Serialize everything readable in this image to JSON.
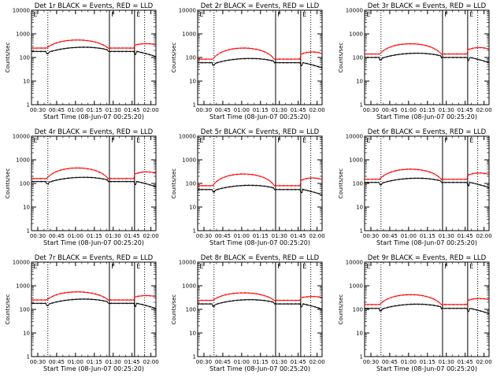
{
  "figure": {
    "xlabel": "Start Time (08-Jun-07 00:25:20)",
    "ylabel": "Counts/sec",
    "series_colors": {
      "Events": "#000000",
      "LLD": "#ff0000"
    }
  },
  "chart_data": [
    {
      "type": "line",
      "title": "Det 1r BLACK = Events, RED = LLD",
      "xlabel": "Start Time (08-Jun-07 00:25:20)",
      "ylabel": "Counts/sec",
      "y_scale": "log",
      "ylim": [
        1,
        10000
      ],
      "xlim": [
        "00:25",
        "02:04"
      ],
      "x_ticks": [
        "00:30",
        "00:45",
        "01:00",
        "01:15",
        "01:30",
        "01:45",
        "02:00"
      ],
      "y_ticks": [
        "1",
        "10",
        "100",
        "1000",
        "10000"
      ],
      "vlines_solid": [
        "01:27",
        "01:47"
      ],
      "vlines_dotted": [
        "00:38",
        "01:55"
      ],
      "flags": [
        "E",
        "F",
        "E"
      ],
      "events_level": 180,
      "lld_level": 250,
      "lld_peak": 550
    },
    {
      "type": "line",
      "title": "Det 2r BLACK = Events, RED = LLD",
      "xlabel": "Start Time (08-Jun-07 00:25:20)",
      "ylabel": "Counts/sec",
      "y_scale": "log",
      "ylim": [
        1,
        10000
      ],
      "xlim": [
        "00:25",
        "02:04"
      ],
      "x_ticks": [
        "00:30",
        "00:45",
        "01:00",
        "01:15",
        "01:30",
        "01:45",
        "02:00"
      ],
      "y_ticks": [
        "1",
        "10",
        "100",
        "1000",
        "10000"
      ],
      "vlines_solid": [
        "01:27",
        "01:47"
      ],
      "vlines_dotted": [
        "00:38",
        "01:55"
      ],
      "flags": [
        "E",
        "F",
        "E"
      ],
      "events_level": 60,
      "lld_level": 85,
      "lld_peak": 250
    },
    {
      "type": "line",
      "title": "Det 3r BLACK = Events, RED = LLD",
      "xlabel": "Start Time (08-Jun-07 00:25:20)",
      "ylabel": "Counts/sec",
      "y_scale": "log",
      "ylim": [
        1,
        10000
      ],
      "xlim": [
        "00:25",
        "02:04"
      ],
      "x_ticks": [
        "00:30",
        "00:45",
        "01:00",
        "01:15",
        "01:30",
        "01:45",
        "02:00"
      ],
      "y_ticks": [
        "1",
        "10",
        "100",
        "1000",
        "10000"
      ],
      "vlines_solid": [
        "01:27",
        "01:47"
      ],
      "vlines_dotted": [
        "00:38",
        "01:55"
      ],
      "flags": [
        "E",
        "F",
        "E"
      ],
      "events_level": 100,
      "lld_level": 140,
      "lld_peak": 380
    },
    {
      "type": "line",
      "title": "Det 4r BLACK = Events, RED = LLD",
      "xlabel": "Start Time (08-Jun-07 00:25:20)",
      "ylabel": "Counts/sec",
      "y_scale": "log",
      "ylim": [
        1,
        10000
      ],
      "xlim": [
        "00:25",
        "02:04"
      ],
      "x_ticks": [
        "00:30",
        "00:45",
        "01:00",
        "01:15",
        "01:30",
        "01:45",
        "02:00"
      ],
      "y_ticks": [
        "1",
        "10",
        "100",
        "1000",
        "10000"
      ],
      "vlines_solid": [
        "01:27",
        "01:47"
      ],
      "vlines_dotted": [
        "00:38",
        "01:55"
      ],
      "flags": [
        "E",
        "F",
        "E"
      ],
      "events_level": 120,
      "lld_level": 160,
      "lld_peak": 450
    },
    {
      "type": "line",
      "title": "Det 5r BLACK = Events, RED = LLD",
      "xlabel": "Start Time (08-Jun-07 00:25:20)",
      "ylabel": "Counts/sec",
      "y_scale": "log",
      "ylim": [
        1,
        10000
      ],
      "xlim": [
        "00:25",
        "02:04"
      ],
      "x_ticks": [
        "00:30",
        "00:45",
        "01:00",
        "01:15",
        "01:30",
        "01:45",
        "02:00"
      ],
      "y_ticks": [
        "1",
        "10",
        "100",
        "1000",
        "10000"
      ],
      "vlines_solid": [
        "01:27",
        "01:47"
      ],
      "vlines_dotted": [
        "00:38",
        "01:55"
      ],
      "flags": [
        "E",
        "F",
        "E"
      ],
      "events_level": 55,
      "lld_level": 80,
      "lld_peak": 250
    },
    {
      "type": "line",
      "title": "Det 6r BLACK = Events, RED = LLD",
      "xlabel": "Start Time (08-Jun-07 00:25:20)",
      "ylabel": "Counts/sec",
      "y_scale": "log",
      "ylim": [
        1,
        10000
      ],
      "xlim": [
        "00:25",
        "02:04"
      ],
      "x_ticks": [
        "00:30",
        "00:45",
        "01:00",
        "01:15",
        "01:30",
        "01:45",
        "02:00"
      ],
      "y_ticks": [
        "1",
        "10",
        "100",
        "1000",
        "10000"
      ],
      "vlines_solid": [
        "01:27",
        "01:47"
      ],
      "vlines_dotted": [
        "00:38",
        "01:55"
      ],
      "flags": [
        "E",
        "F",
        "E"
      ],
      "events_level": 110,
      "lld_level": 150,
      "lld_peak": 400
    },
    {
      "type": "line",
      "title": "Det 7r BLACK = Events, RED = LLD",
      "xlabel": "Start Time (08-Jun-07 00:25:20)",
      "ylabel": "Counts/sec",
      "y_scale": "log",
      "ylim": [
        1,
        10000
      ],
      "xlim": [
        "00:25",
        "02:04"
      ],
      "x_ticks": [
        "00:30",
        "00:45",
        "01:00",
        "01:15",
        "01:30",
        "01:45",
        "02:00"
      ],
      "y_ticks": [
        "1",
        "10",
        "100",
        "1000",
        "10000"
      ],
      "vlines_solid": [
        "01:27",
        "01:47"
      ],
      "vlines_dotted": [
        "00:38",
        "01:55"
      ],
      "flags": [
        "E",
        "F",
        "E"
      ],
      "events_level": 180,
      "lld_level": 250,
      "lld_peak": 550
    },
    {
      "type": "line",
      "title": "Det 8r BLACK = Events, RED = LLD",
      "xlabel": "Start Time (08-Jun-07 00:25:20)",
      "ylabel": "Counts/sec",
      "y_scale": "log",
      "ylim": [
        1,
        10000
      ],
      "xlim": [
        "00:25",
        "02:04"
      ],
      "x_ticks": [
        "00:30",
        "00:45",
        "01:00",
        "01:15",
        "01:30",
        "01:45",
        "02:00"
      ],
      "y_ticks": [
        "1",
        "10",
        "100",
        "1000",
        "10000"
      ],
      "vlines_solid": [
        "01:27",
        "01:47"
      ],
      "vlines_dotted": [
        "00:38",
        "01:55"
      ],
      "flags": [
        "E",
        "F",
        "E"
      ],
      "events_level": 170,
      "lld_level": 240,
      "lld_peak": 500
    },
    {
      "type": "line",
      "title": "Det 9r BLACK = Events, RED = LLD",
      "xlabel": "Start Time (08-Jun-07 00:25:20)",
      "ylabel": "Counts/sec",
      "y_scale": "log",
      "ylim": [
        1,
        10000
      ],
      "xlim": [
        "00:25",
        "02:04"
      ],
      "x_ticks": [
        "00:30",
        "00:45",
        "01:00",
        "01:15",
        "01:30",
        "01:45",
        "02:00"
      ],
      "y_ticks": [
        "1",
        "10",
        "100",
        "1000",
        "10000"
      ],
      "vlines_solid": [
        "01:27",
        "01:47"
      ],
      "vlines_dotted": [
        "00:38",
        "01:55"
      ],
      "flags": [
        "E",
        "F",
        "E"
      ],
      "events_level": 110,
      "lld_level": 160,
      "lld_peak": 420
    }
  ]
}
